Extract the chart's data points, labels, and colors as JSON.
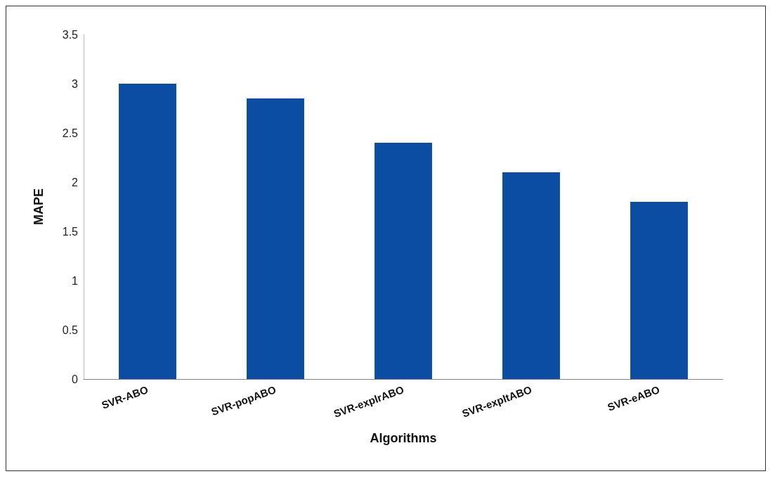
{
  "chart_data": {
    "type": "bar",
    "xlabel": "Algorithms",
    "ylabel": "MAPE",
    "categories": [
      "SVR-ABO",
      "SVR-popABO",
      "SVR-explrABO",
      "SVR-expltABO",
      "SVR-eABO"
    ],
    "values": [
      3.0,
      2.85,
      2.4,
      2.1,
      1.8
    ],
    "color": "#0b4da2",
    "ylim": [
      0,
      3.5
    ],
    "yticks": [
      0,
      0.5,
      1,
      1.5,
      2,
      2.5,
      3,
      3.5
    ],
    "grid": false
  }
}
